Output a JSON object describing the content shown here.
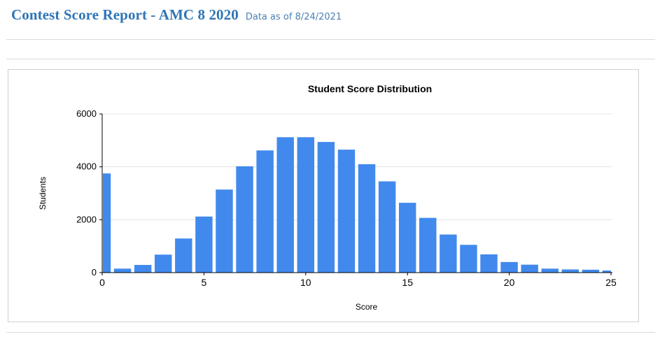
{
  "header": {
    "title": "Contest Score Report - AMC 8 2020",
    "subtitle": "Data as of 8/24/2021"
  },
  "colors": {
    "bar": "#4189ed",
    "gridline": "#e3e3e3",
    "axis": "#000000",
    "header_title": "#2e75b6",
    "header_subtitle": "#4a7fb5"
  },
  "chart_data": {
    "type": "bar",
    "title": "Student Score Distribution",
    "xlabel": "Score",
    "ylabel": "Students",
    "x": [
      0,
      1,
      2,
      3,
      4,
      5,
      6,
      7,
      8,
      9,
      10,
      11,
      12,
      13,
      14,
      15,
      16,
      17,
      18,
      19,
      20,
      21,
      22,
      23,
      24,
      25
    ],
    "values": [
      3750,
      150,
      290,
      680,
      1290,
      2120,
      3140,
      4020,
      4620,
      5120,
      5120,
      4940,
      4650,
      4100,
      3450,
      2640,
      2070,
      1440,
      1050,
      690,
      400,
      300,
      150,
      120,
      110,
      80
    ],
    "xlim": [
      0,
      25
    ],
    "ylim": [
      0,
      6000
    ],
    "xticks": [
      0,
      5,
      10,
      15,
      20,
      25
    ],
    "yticks": [
      0,
      2000,
      4000,
      6000
    ],
    "grid": true,
    "legend": "none"
  }
}
